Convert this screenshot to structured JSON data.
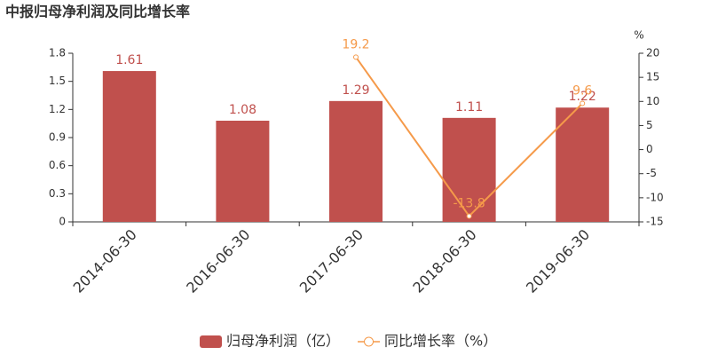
{
  "chart_data": {
    "type": "bar-line",
    "title": "中报归母净利润及同比增长率",
    "categories": [
      "2014-06-30",
      "2016-06-30",
      "2017-06-30",
      "2018-06-30",
      "2019-06-30"
    ],
    "series": [
      {
        "name": "归母净利润（亿）",
        "type": "bar",
        "color": "#c0504d",
        "values": [
          1.61,
          1.08,
          1.29,
          1.11,
          1.22
        ]
      },
      {
        "name": "同比增长率（%）",
        "type": "line",
        "axis": "y2",
        "color": "#f59a4a",
        "values": [
          null,
          null,
          19.2,
          -13.8,
          9.6
        ]
      }
    ],
    "ylim": [
      0,
      1.8
    ],
    "yticks": [
      0,
      0.3,
      0.6,
      0.9,
      1.2,
      1.5,
      1.8
    ],
    "y2label": "%",
    "y2lim": [
      -15,
      20
    ],
    "y2ticks": [
      -15,
      -10,
      -5,
      0,
      5,
      10,
      15,
      20
    ]
  }
}
